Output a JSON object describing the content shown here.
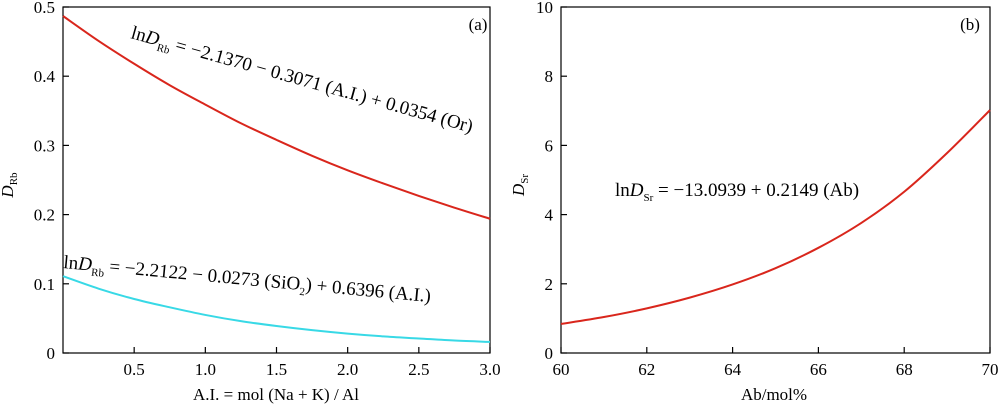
{
  "chart_data": [
    {
      "type": "line",
      "panel_label": "(a)",
      "xlabel": "A.I. = mol (Na + K) / Al",
      "ylabel": {
        "main": "D",
        "sub": "Rb"
      },
      "xlim": [
        0,
        3.0
      ],
      "ylim": [
        0,
        0.5
      ],
      "xticks": [
        0.5,
        1.0,
        1.5,
        2.0,
        2.5,
        3.0
      ],
      "xtick_labels": [
        "0.5",
        "1.0",
        "1.5",
        "2.0",
        "2.5",
        "3.0"
      ],
      "yticks": [
        0,
        0.1,
        0.2,
        0.3,
        0.4,
        0.5
      ],
      "ytick_labels": [
        "0",
        "0.1",
        "0.2",
        "0.3",
        "0.4",
        "0.5"
      ],
      "grid": false,
      "series": [
        {
          "color": "#d9261c",
          "x": [
            0,
            0.25,
            0.5,
            0.75,
            1.0,
            1.25,
            1.5,
            1.75,
            2.0,
            2.25,
            2.5,
            2.75,
            3.0
          ],
          "values": [
            0.487,
            0.451,
            0.418,
            0.387,
            0.359,
            0.332,
            0.308,
            0.285,
            0.264,
            0.245,
            0.227,
            0.21,
            0.194
          ]
        },
        {
          "color": "#38d9e6",
          "x": [
            0,
            0.25,
            0.5,
            0.75,
            1.0,
            1.25,
            1.5,
            1.75,
            2.0,
            2.25,
            2.5,
            2.75,
            3.0
          ],
          "values": [
            0.111,
            0.093,
            0.078,
            0.066,
            0.055,
            0.046,
            0.039,
            0.033,
            0.028,
            0.024,
            0.021,
            0.018,
            0.016
          ]
        }
      ],
      "annotations": [
        {
          "parts": [
            {
              "t": "ln"
            },
            {
              "t": "D",
              "style": "italic"
            },
            {
              "t": "Rb",
              "style": "sub"
            },
            {
              "t": " = −2.1370 − 0.3071 (A.I.) + 0.0354 (Or)"
            }
          ],
          "color": "#000000"
        },
        {
          "parts": [
            {
              "t": "ln"
            },
            {
              "t": "D",
              "style": "italic"
            },
            {
              "t": "Rb",
              "style": "sub"
            },
            {
              "t": " = −2.2122 − 0.0273 (SiO"
            },
            {
              "t": "2",
              "style": "sub"
            },
            {
              "t": ") + 0.6396 (A.I.)"
            }
          ],
          "color": "#000000"
        }
      ]
    },
    {
      "type": "line",
      "panel_label": "(b)",
      "xlabel": "Ab/mol%",
      "ylabel": {
        "main": "D",
        "sub": "Sr"
      },
      "xlim": [
        60,
        70
      ],
      "ylim": [
        0,
        10
      ],
      "xticks": [
        60,
        62,
        64,
        66,
        68,
        70
      ],
      "xtick_labels": [
        "60",
        "62",
        "64",
        "66",
        "68",
        "70"
      ],
      "yticks": [
        0,
        2,
        4,
        6,
        8,
        10
      ],
      "ytick_labels": [
        "0",
        "2",
        "4",
        "6",
        "8",
        "10"
      ],
      "grid": false,
      "series": [
        {
          "color": "#d9261c",
          "x": [
            60,
            61,
            62,
            63,
            64,
            65,
            66,
            67,
            68,
            69,
            70
          ],
          "values": [
            0.84,
            1.04,
            1.29,
            1.6,
            1.98,
            2.45,
            3.04,
            3.76,
            4.66,
            5.78,
            7.02
          ]
        }
      ],
      "annotations": [
        {
          "parts": [
            {
              "t": "ln"
            },
            {
              "t": "D",
              "style": "italic"
            },
            {
              "t": "Sr",
              "style": "sub"
            },
            {
              "t": " = −13.0939 + 0.2149 (Ab)"
            }
          ],
          "color": "#000000"
        }
      ]
    }
  ]
}
